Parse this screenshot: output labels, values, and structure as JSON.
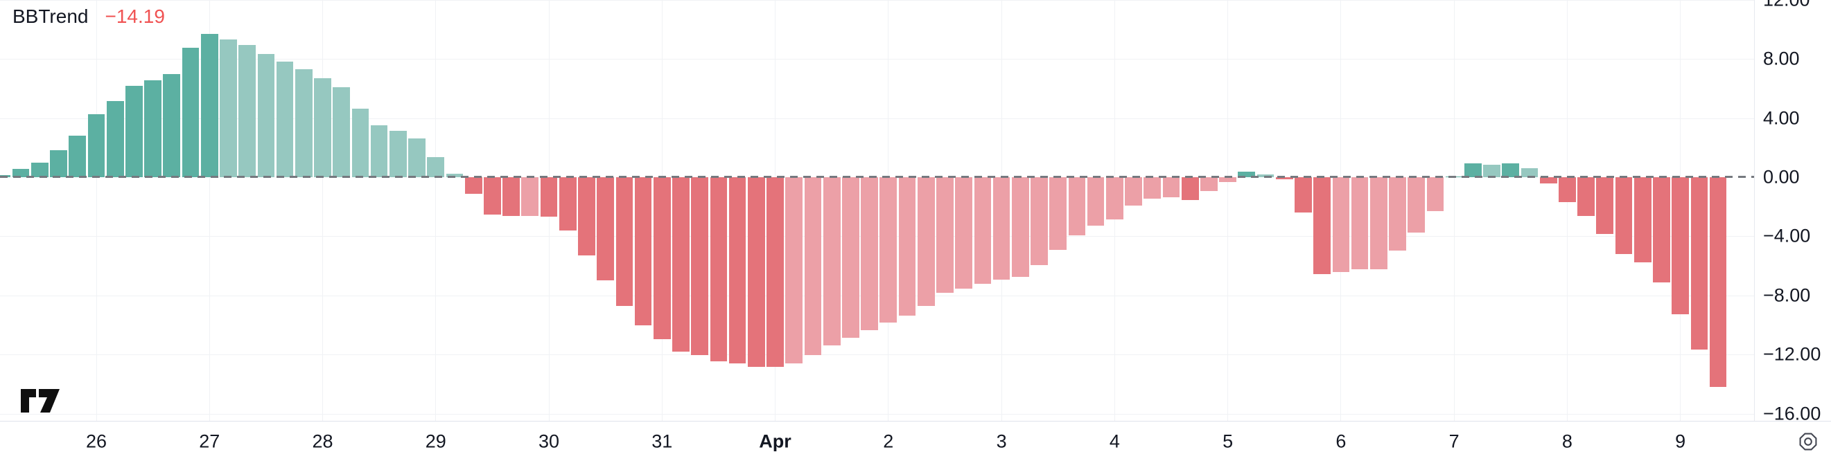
{
  "legend": {
    "title": "BBTrend",
    "value": "−14.19"
  },
  "icons": {
    "logo": "tradingview-logo",
    "settings": "settings-gear-icon"
  },
  "y_axis": {
    "labels": [
      "12.00",
      "8.00",
      "4.00",
      "0.00",
      "−4.00",
      "−8.00",
      "−12.00",
      "−16.00"
    ],
    "values": [
      12,
      8,
      4,
      0,
      -4,
      -8,
      -12,
      -16
    ]
  },
  "x_axis": {
    "labels": [
      {
        "text": "26",
        "bar": 5,
        "bold": false
      },
      {
        "text": "27",
        "bar": 11,
        "bold": false
      },
      {
        "text": "28",
        "bar": 17,
        "bold": false
      },
      {
        "text": "29",
        "bar": 23,
        "bold": false
      },
      {
        "text": "30",
        "bar": 29,
        "bold": false
      },
      {
        "text": "31",
        "bar": 35,
        "bold": false
      },
      {
        "text": "Apr",
        "bar": 41,
        "bold": true
      },
      {
        "text": "2",
        "bar": 47,
        "bold": false
      },
      {
        "text": "3",
        "bar": 53,
        "bold": false
      },
      {
        "text": "4",
        "bar": 59,
        "bold": false
      },
      {
        "text": "5",
        "bar": 65,
        "bold": false
      },
      {
        "text": "6",
        "bar": 71,
        "bold": false
      },
      {
        "text": "7",
        "bar": 77,
        "bold": false
      },
      {
        "text": "8",
        "bar": 83,
        "bold": false
      },
      {
        "text": "9",
        "bar": 89,
        "bold": false
      }
    ]
  },
  "chart_data": {
    "type": "bar",
    "title": "BBTrend",
    "current_value": -14.19,
    "timeframe_note": "6 bars per day label",
    "ylim": [
      -16.5,
      12
    ],
    "grid": true,
    "zero_line": "dashed",
    "colors": {
      "ga": "#5cb0a2",
      "fa": "#96c8c0",
      "fb": "#e4737a",
      "gb": "#eca0a7"
    },
    "color_legend": {
      "ga": "rising above zero (dark teal)",
      "fa": "falling above zero (light teal)",
      "fb": "falling below zero (dark red)",
      "gb": "rising below zero (light pink)"
    },
    "bars": [
      {
        "v": 0.15,
        "c": "ga"
      },
      {
        "v": 0.56,
        "c": "ga"
      },
      {
        "v": 0.98,
        "c": "ga"
      },
      {
        "v": 1.84,
        "c": "ga"
      },
      {
        "v": 2.81,
        "c": "ga"
      },
      {
        "v": 4.26,
        "c": "ga"
      },
      {
        "v": 5.15,
        "c": "ga"
      },
      {
        "v": 6.16,
        "c": "ga"
      },
      {
        "v": 6.55,
        "c": "ga"
      },
      {
        "v": 6.96,
        "c": "ga"
      },
      {
        "v": 8.75,
        "c": "ga"
      },
      {
        "v": 9.69,
        "c": "ga"
      },
      {
        "v": 9.3,
        "c": "fa"
      },
      {
        "v": 8.94,
        "c": "fa"
      },
      {
        "v": 8.33,
        "c": "fa"
      },
      {
        "v": 7.81,
        "c": "fa"
      },
      {
        "v": 7.31,
        "c": "fa"
      },
      {
        "v": 6.72,
        "c": "fa"
      },
      {
        "v": 6.08,
        "c": "fa"
      },
      {
        "v": 4.65,
        "c": "fa"
      },
      {
        "v": 3.49,
        "c": "fa"
      },
      {
        "v": 3.13,
        "c": "fa"
      },
      {
        "v": 2.62,
        "c": "fa"
      },
      {
        "v": 1.34,
        "c": "fa"
      },
      {
        "v": 0.23,
        "c": "fa"
      },
      {
        "v": -1.12,
        "c": "fb"
      },
      {
        "v": -2.53,
        "c": "fb"
      },
      {
        "v": -2.61,
        "c": "fb"
      },
      {
        "v": -2.6,
        "c": "gb"
      },
      {
        "v": -2.66,
        "c": "fb"
      },
      {
        "v": -3.6,
        "c": "fb"
      },
      {
        "v": -5.3,
        "c": "fb"
      },
      {
        "v": -7.0,
        "c": "fb"
      },
      {
        "v": -8.7,
        "c": "fb"
      },
      {
        "v": -10.0,
        "c": "fb"
      },
      {
        "v": -10.95,
        "c": "fb"
      },
      {
        "v": -11.81,
        "c": "fb"
      },
      {
        "v": -12.04,
        "c": "fb"
      },
      {
        "v": -12.48,
        "c": "fb"
      },
      {
        "v": -12.62,
        "c": "fb"
      },
      {
        "v": -12.82,
        "c": "fb"
      },
      {
        "v": -12.84,
        "c": "fb"
      },
      {
        "v": -12.59,
        "c": "gb"
      },
      {
        "v": -12.04,
        "c": "gb"
      },
      {
        "v": -11.38,
        "c": "gb"
      },
      {
        "v": -10.87,
        "c": "gb"
      },
      {
        "v": -10.33,
        "c": "gb"
      },
      {
        "v": -9.83,
        "c": "gb"
      },
      {
        "v": -9.36,
        "c": "gb"
      },
      {
        "v": -8.69,
        "c": "gb"
      },
      {
        "v": -7.8,
        "c": "gb"
      },
      {
        "v": -7.52,
        "c": "gb"
      },
      {
        "v": -7.21,
        "c": "gb"
      },
      {
        "v": -6.93,
        "c": "gb"
      },
      {
        "v": -6.73,
        "c": "gb"
      },
      {
        "v": -5.95,
        "c": "gb"
      },
      {
        "v": -4.9,
        "c": "gb"
      },
      {
        "v": -3.93,
        "c": "gb"
      },
      {
        "v": -3.28,
        "c": "gb"
      },
      {
        "v": -2.84,
        "c": "gb"
      },
      {
        "v": -1.9,
        "c": "gb"
      },
      {
        "v": -1.47,
        "c": "gb"
      },
      {
        "v": -1.36,
        "c": "gb"
      },
      {
        "v": -1.56,
        "c": "fb"
      },
      {
        "v": -0.94,
        "c": "gb"
      },
      {
        "v": -0.31,
        "c": "gb"
      },
      {
        "v": 0.36,
        "c": "ga"
      },
      {
        "v": 0.2,
        "c": "fa"
      },
      {
        "v": -0.15,
        "c": "fb"
      },
      {
        "v": -2.4,
        "c": "fb"
      },
      {
        "v": -6.58,
        "c": "fb"
      },
      {
        "v": -6.4,
        "c": "gb"
      },
      {
        "v": -6.24,
        "c": "gb"
      },
      {
        "v": -6.22,
        "c": "gb"
      },
      {
        "v": -4.95,
        "c": "gb"
      },
      {
        "v": -3.74,
        "c": "gb"
      },
      {
        "v": -2.29,
        "c": "gb"
      },
      {
        "v": 0.05,
        "c": "ga"
      },
      {
        "v": 0.95,
        "c": "ga"
      },
      {
        "v": 0.83,
        "c": "fa"
      },
      {
        "v": 0.95,
        "c": "ga"
      },
      {
        "v": 0.62,
        "c": "fa"
      },
      {
        "v": -0.42,
        "c": "fb"
      },
      {
        "v": -1.67,
        "c": "fb"
      },
      {
        "v": -2.63,
        "c": "fb"
      },
      {
        "v": -3.82,
        "c": "fb"
      },
      {
        "v": -5.18,
        "c": "fb"
      },
      {
        "v": -5.77,
        "c": "fb"
      },
      {
        "v": -7.13,
        "c": "fb"
      },
      {
        "v": -9.26,
        "c": "fb"
      },
      {
        "v": -11.65,
        "c": "fb"
      },
      {
        "v": -14.19,
        "c": "fb"
      }
    ]
  }
}
